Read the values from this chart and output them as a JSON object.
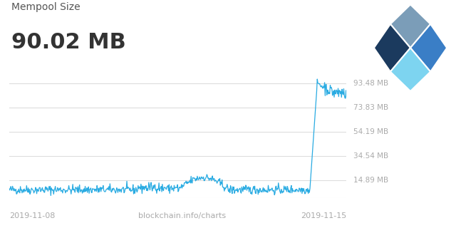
{
  "title_label": "Mempool Size",
  "value_label": "90.02 MB",
  "subtitle": "blockchain.info/charts",
  "date_left": "2019-11-08",
  "date_right": "2019-11-15",
  "y_tick_labels": [
    "14.89 MB",
    "34.54 MB",
    "54.19 MB",
    "73.83 MB",
    "93.48 MB"
  ],
  "y_tick_values": [
    14.89,
    34.54,
    54.19,
    73.83,
    93.48
  ],
  "y_min": 0,
  "y_max": 100,
  "line_color": "#29ABE2",
  "background_color": "#FFFFFF",
  "grid_color": "#DDDDDD",
  "text_color_title": "#555555",
  "text_color_value": "#333333",
  "text_color_sub": "#AAAAAA",
  "n_points": 600
}
